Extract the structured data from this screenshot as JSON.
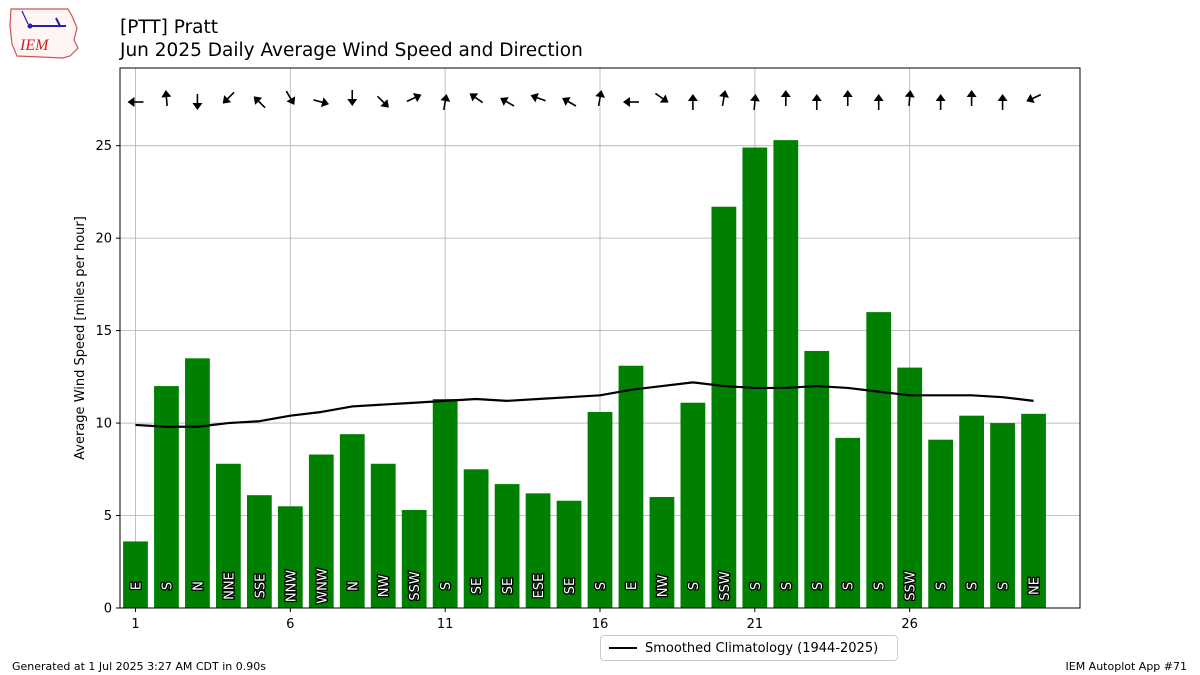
{
  "title_line1": "[PTT] Pratt",
  "title_line2": "Jun 2025 Daily Average Wind Speed and Direction",
  "logo_text": "IEM",
  "footer_left": "Generated at 1 Jul 2025 3:27 AM CDT in 0.90s",
  "footer_right": "IEM Autoplot App #71",
  "legend_label": "Smoothed Climatology (1944-2025)",
  "colors": {
    "bar": "#008000",
    "climo": "#000000",
    "grid": "#b0b0b0"
  },
  "chart_data": {
    "type": "bar",
    "title": "[PTT] Pratt\nJun 2025 Daily Average Wind Speed and Direction",
    "ylabel": "Average Wind Speed [miles per hour]",
    "xlabel": "",
    "xlim": [
      0.5,
      31.5
    ],
    "ylim": [
      0,
      29.2
    ],
    "xticks": [
      1,
      6,
      11,
      16,
      21,
      26
    ],
    "yticks": [
      0,
      5,
      10,
      15,
      20,
      25
    ],
    "grid": true,
    "legend_position": "below-center",
    "days": [
      1,
      2,
      3,
      4,
      5,
      6,
      7,
      8,
      9,
      10,
      11,
      12,
      13,
      14,
      15,
      16,
      17,
      18,
      19,
      20,
      21,
      22,
      23,
      24,
      25,
      26,
      27,
      28,
      29,
      30
    ],
    "values": [
      3.6,
      12.0,
      13.5,
      7.8,
      6.1,
      5.5,
      8.3,
      9.4,
      7.8,
      5.3,
      11.3,
      7.5,
      6.7,
      6.2,
      5.8,
      10.6,
      13.1,
      6.0,
      11.1,
      21.7,
      24.9,
      25.3,
      13.9,
      9.2,
      16.0,
      13.0,
      9.1,
      10.4,
      10.0,
      10.5
    ],
    "directions": [
      "E",
      "S",
      "N",
      "NNE",
      "SSE",
      "NNW",
      "WNW",
      "N",
      "NW",
      "SSW",
      "S",
      "SE",
      "SE",
      "ESE",
      "SE",
      "S",
      "E",
      "NW",
      "S",
      "SSW",
      "S",
      "S",
      "S",
      "S",
      "S",
      "SSW",
      "S",
      "S",
      "S",
      "NE"
    ],
    "arrow_angles_deg": [
      180,
      95,
      270,
      225,
      135,
      300,
      345,
      270,
      315,
      25,
      80,
      145,
      150,
      160,
      150,
      80,
      180,
      325,
      90,
      80,
      85,
      90,
      90,
      90,
      90,
      85,
      90,
      90,
      90,
      205
    ],
    "series": [
      {
        "name": "Smoothed Climatology (1944-2025)",
        "values": [
          9.9,
          9.8,
          9.8,
          10.0,
          10.1,
          10.4,
          10.6,
          10.9,
          11.0,
          11.1,
          11.2,
          11.3,
          11.2,
          11.3,
          11.4,
          11.5,
          11.8,
          12.0,
          12.2,
          12.0,
          11.9,
          11.9,
          12.0,
          11.9,
          11.7,
          11.5,
          11.5,
          11.5,
          11.4,
          11.2
        ]
      }
    ]
  }
}
